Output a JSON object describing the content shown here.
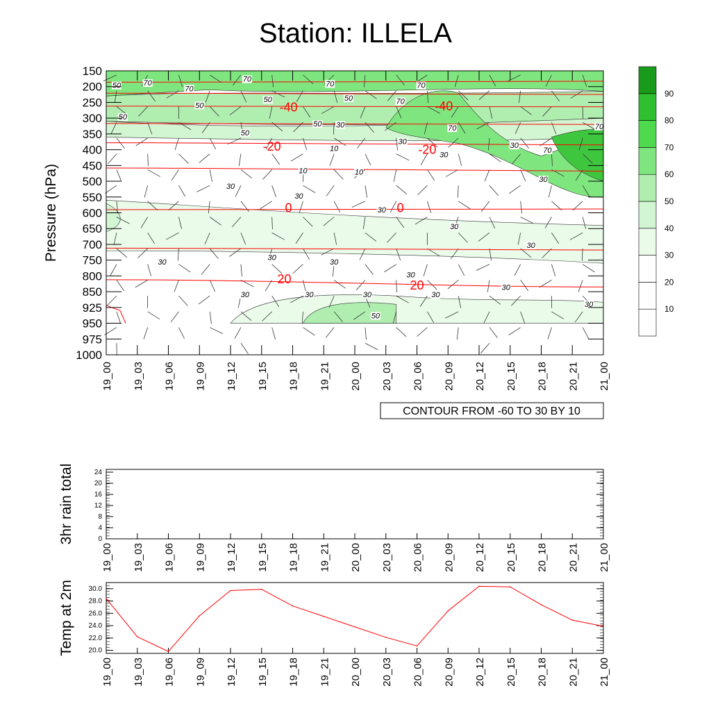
{
  "title": "Station: ILLELA",
  "chart_data": [
    {
      "type": "contour",
      "ylabel": "Pressure (hPa)",
      "pressure_levels": [
        150,
        200,
        250,
        300,
        350,
        400,
        450,
        500,
        550,
        600,
        650,
        700,
        750,
        800,
        850,
        925,
        950,
        975,
        1000
      ],
      "x_ticks": [
        "19_00",
        "19_03",
        "19_06",
        "19_09",
        "19_12",
        "19_15",
        "19_18",
        "19_21",
        "20_00",
        "20_03",
        "20_06",
        "20_09",
        "20_12",
        "20_15",
        "20_18",
        "20_21",
        "21_00"
      ],
      "footer": "CONTOUR FROM -60 TO 30 BY 10",
      "colorbar": {
        "ticks": [
          "10",
          "20",
          "30",
          "40",
          "50",
          "60",
          "70",
          "80",
          "90"
        ],
        "colors": [
          "#ffffff",
          "#ffffff",
          "#ffffff",
          "#eafbea",
          "#d2f5d2",
          "#b0eeb0",
          "#7fe67f",
          "#4fd94f",
          "#2fbf2f",
          "#1a9a1a"
        ]
      },
      "humidity_contour_labels": [
        {
          "text": "70",
          "t": 2,
          "p": 192
        },
        {
          "text": "70",
          "t": 4,
          "p": 210
        },
        {
          "text": "70",
          "t": 6.8,
          "p": 180
        },
        {
          "text": "70",
          "t": 10.8,
          "p": 195
        },
        {
          "text": "50",
          "t": 0.5,
          "p": 200
        },
        {
          "text": "50",
          "t": 4.5,
          "p": 263
        },
        {
          "text": "50",
          "t": 7.8,
          "p": 245
        },
        {
          "text": "50",
          "t": 11.7,
          "p": 240
        },
        {
          "text": "50",
          "t": 0.8,
          "p": 300
        },
        {
          "text": "50",
          "t": 6.7,
          "p": 350
        },
        {
          "text": "50",
          "t": 10.2,
          "p": 322
        },
        {
          "text": "70",
          "t": 15.2,
          "p": 200
        },
        {
          "text": "70",
          "t": 16.7,
          "p": 335
        },
        {
          "text": "70",
          "t": 14.2,
          "p": 250
        },
        {
          "text": "70",
          "t": 21.3,
          "p": 405
        },
        {
          "text": "70",
          "t": 23.8,
          "p": 330
        },
        {
          "text": "30",
          "t": 11.3,
          "p": 325
        },
        {
          "text": "30",
          "t": 14.3,
          "p": 378
        },
        {
          "text": "30",
          "t": 16.3,
          "p": 420
        },
        {
          "text": "30",
          "t": 19.7,
          "p": 390
        },
        {
          "text": "30",
          "t": 6.0,
          "p": 520
        },
        {
          "text": "30",
          "t": 9.3,
          "p": 550
        },
        {
          "text": "30",
          "t": 21.1,
          "p": 498
        },
        {
          "text": "30",
          "t": 13.3,
          "p": 595
        },
        {
          "text": "30",
          "t": 16.8,
          "p": 647
        },
        {
          "text": "30",
          "t": 20.5,
          "p": 707
        },
        {
          "text": "30",
          "t": 2.7,
          "p": 760
        },
        {
          "text": "30",
          "t": 8.0,
          "p": 745
        },
        {
          "text": "30",
          "t": 11.0,
          "p": 760
        },
        {
          "text": "30",
          "t": 14.7,
          "p": 800
        },
        {
          "text": "30",
          "t": 19.3,
          "p": 840
        },
        {
          "text": "30",
          "t": 15.9,
          "p": 870
        },
        {
          "text": "30",
          "t": 6.7,
          "p": 870
        },
        {
          "text": "30",
          "t": 9.8,
          "p": 870
        },
        {
          "text": "30",
          "t": 12.6,
          "p": 870
        },
        {
          "text": "30",
          "t": 23.3,
          "p": 915
        },
        {
          "text": "50",
          "t": 13.0,
          "p": 940
        },
        {
          "text": "10",
          "t": 11.0,
          "p": 400
        },
        {
          "text": "10",
          "t": 9.5,
          "p": 470
        },
        {
          "text": "10",
          "t": 12.2,
          "p": 475
        }
      ],
      "temperature_contour_labels": [
        {
          "text": "-40",
          "t": 8.8,
          "p": 265
        },
        {
          "text": "-40",
          "t": 16.3,
          "p": 262
        },
        {
          "text": "-20",
          "t": 8.0,
          "p": 390
        },
        {
          "text": "-20",
          "t": 15.5,
          "p": 400
        },
        {
          "text": "0",
          "t": 8.8,
          "p": 585
        },
        {
          "text": "0",
          "t": 14.2,
          "p": 585
        },
        {
          "text": "20",
          "t": 8.6,
          "p": 810
        },
        {
          "text": "20",
          "t": 15.0,
          "p": 830
        }
      ]
    },
    {
      "type": "line",
      "ylabel": "3hr rain total",
      "x_ticks": [
        "19_00",
        "19_03",
        "19_06",
        "19_09",
        "19_12",
        "19_15",
        "19_18",
        "19_21",
        "20_00",
        "20_03",
        "20_06",
        "20_09",
        "20_12",
        "20_15",
        "20_18",
        "20_21",
        "21_00"
      ],
      "y_ticks": [
        "0",
        "4",
        "8",
        "12",
        "16",
        "20",
        "24"
      ],
      "ylim": [
        0,
        25
      ],
      "values": [
        0,
        0,
        0,
        0,
        0,
        0,
        0,
        0,
        0,
        0,
        0,
        0,
        0,
        0,
        0,
        0,
        0
      ]
    },
    {
      "type": "line",
      "ylabel": "Temp at 2m",
      "x_ticks": [
        "19_00",
        "19_03",
        "19_06",
        "19_09",
        "19_12",
        "19_15",
        "19_18",
        "19_21",
        "20_00",
        "20_03",
        "20_06",
        "20_09",
        "20_12",
        "20_15",
        "20_18",
        "20_21",
        "21_00"
      ],
      "y_ticks": [
        "20.0",
        "22.0",
        "24.0",
        "26.0",
        "28.0",
        "30.0"
      ],
      "ylim": [
        19.5,
        31.0
      ],
      "values": [
        28.4,
        22.2,
        19.8,
        25.6,
        29.7,
        29.9,
        27.2,
        25.5,
        23.8,
        22.1,
        20.7,
        26.4,
        30.4,
        30.3,
        27.4,
        24.9,
        23.9
      ],
      "line_color": "#ff0000"
    }
  ]
}
